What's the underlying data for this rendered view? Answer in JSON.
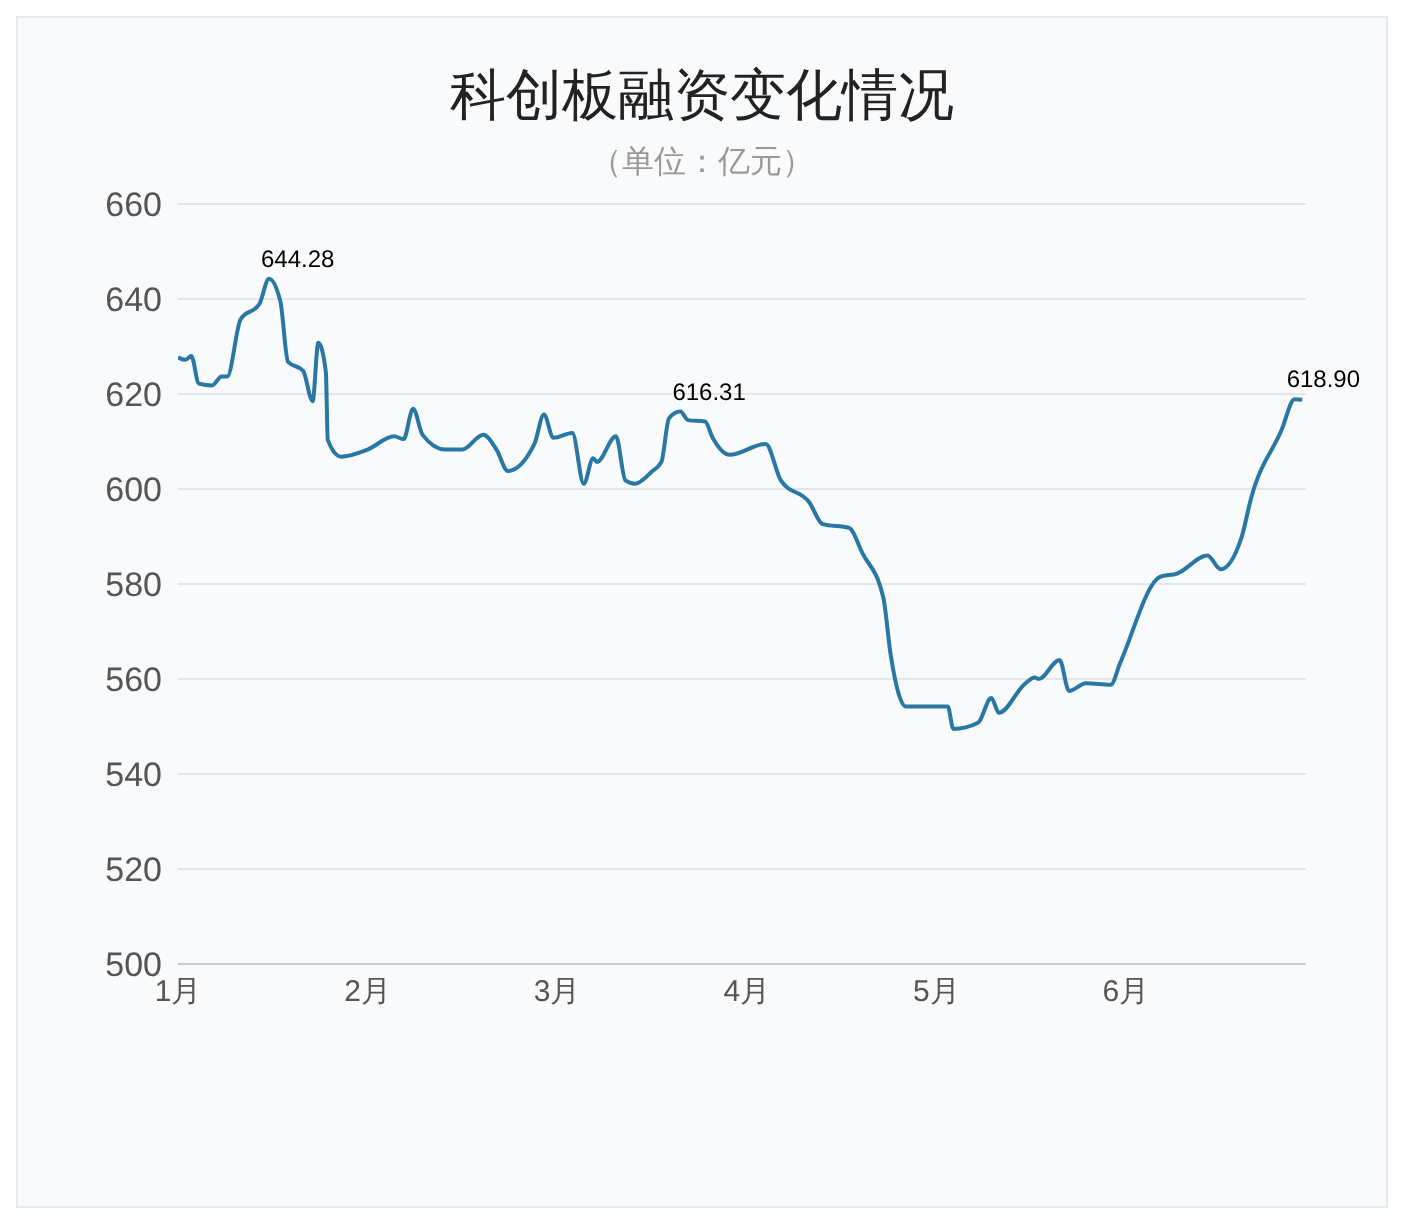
{
  "chart_data": {
    "type": "line",
    "title": "科创板融资变化情况",
    "subtitle": "（单位：亿元）",
    "x": [
      1.0,
      1.04,
      1.07,
      1.11,
      1.18,
      1.23,
      1.26,
      1.33,
      1.43,
      1.48,
      1.54,
      1.58,
      1.66,
      1.71,
      1.74,
      1.78,
      1.79,
      1.86,
      2.0,
      2.14,
      2.19,
      2.24,
      2.29,
      2.41,
      2.5,
      2.61,
      2.68,
      2.74,
      2.88,
      2.93,
      2.98,
      3.08,
      3.14,
      3.19,
      3.21,
      3.31,
      3.36,
      3.41,
      3.5,
      3.55,
      3.59,
      3.65,
      3.69,
      3.78,
      3.82,
      3.91,
      4.1,
      4.18,
      4.33,
      4.4,
      4.54,
      4.61,
      4.72,
      4.76,
      4.84,
      5.06,
      5.09,
      5.22,
      5.29,
      5.33,
      5.47,
      5.52,
      5.54,
      5.65,
      5.7,
      5.79,
      5.92,
      5.97,
      6.18,
      6.27,
      6.43,
      6.5,
      6.61,
      6.66,
      6.82,
      6.89,
      6.93
    ],
    "series": [
      {
        "color": "#2878a3",
        "values": [
          627.7,
          627.2,
          628,
          622.2,
          621.8,
          623.7,
          623.7,
          635.7,
          639,
          644.28,
          639.5,
          626.8,
          624.9,
          618.5,
          630.8,
          624.6,
          610.3,
          606.8,
          608.3,
          611.1,
          610.5,
          616.9,
          611.4,
          608.3,
          608.3,
          611.4,
          608.3,
          603.8,
          609.5,
          615.7,
          610.8,
          611.8,
          601.1,
          606.5,
          605.7,
          611.1,
          601.8,
          601.1,
          603.7,
          605.7,
          614.9,
          616.31,
          614.5,
          614.2,
          610.8,
          607.2,
          609.5,
          601.8,
          597.2,
          592.6,
          591.8,
          586.5,
          577.2,
          564.9,
          554.2,
          554.2,
          549.5,
          550.8,
          556,
          552.9,
          559.1,
          560.3,
          560,
          564,
          557.5,
          559.1,
          558.8,
          563.4,
          581.5,
          582.2,
          586,
          583.1,
          589.8,
          598,
          612.3,
          618.9,
          618.8
        ],
        "value_labels": [
          null,
          null,
          null,
          null,
          null,
          null,
          null,
          null,
          null,
          "644.28",
          null,
          null,
          null,
          null,
          null,
          null,
          null,
          null,
          null,
          null,
          null,
          null,
          null,
          null,
          null,
          null,
          null,
          null,
          null,
          null,
          null,
          null,
          null,
          null,
          null,
          null,
          null,
          null,
          null,
          null,
          null,
          "616.31",
          null,
          null,
          null,
          null,
          null,
          null,
          null,
          null,
          null,
          null,
          null,
          null,
          null,
          null,
          null,
          null,
          null,
          null,
          null,
          null,
          null,
          null,
          null,
          null,
          null,
          null,
          null,
          null,
          null,
          null,
          null,
          null,
          null,
          "618.90",
          null
        ]
      }
    ],
    "xlim": [
      1,
      6.95
    ],
    "xticks": [
      {
        "value": 1,
        "label": "1月"
      },
      {
        "value": 2,
        "label": "2月"
      },
      {
        "value": 3,
        "label": "3月"
      },
      {
        "value": 4,
        "label": "4月"
      },
      {
        "value": 5,
        "label": "5月"
      },
      {
        "value": 6,
        "label": "6月"
      }
    ],
    "ylim": [
      500,
      660
    ],
    "yticks": [
      500,
      520,
      540,
      560,
      580,
      600,
      620,
      640,
      660
    ],
    "grid": "y",
    "marker": "none",
    "line_style": "solid"
  }
}
